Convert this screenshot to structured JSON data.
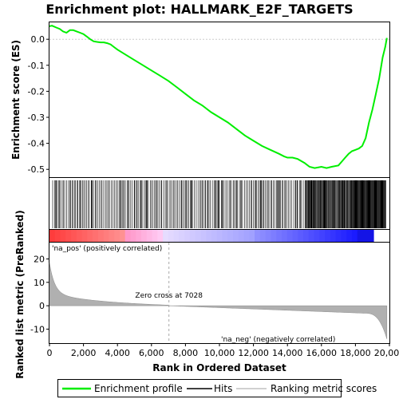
{
  "chart_data": {
    "type": "line",
    "title": "Enrichment plot: HALLMARK_E2F_TARGETS",
    "xlabel": "Rank in Ordered Dataset",
    "ylabel_top": "Enrichment score (ES)",
    "ylabel_bottom": "Ranked list metric (PreRanked)",
    "x_range": [
      0,
      20000
    ],
    "es_ylim": [
      -0.53,
      0.065
    ],
    "metric_ylim": [
      -16,
      27
    ],
    "x_ticks": [
      "0",
      "2,000",
      "4,000",
      "6,000",
      "8,000",
      "10,000",
      "12,000",
      "14,000",
      "16,000",
      "18,000",
      "20,000"
    ],
    "x_tick_values": [
      0,
      2000,
      4000,
      6000,
      8000,
      10000,
      12000,
      14000,
      16000,
      18000,
      20000
    ],
    "es_ticks": [
      "0.0",
      "-0.1",
      "-0.2",
      "-0.3",
      "-0.4",
      "-0.5"
    ],
    "es_tick_values": [
      0.0,
      -0.1,
      -0.2,
      -0.3,
      -0.4,
      -0.5
    ],
    "metric_ticks": [
      "20",
      "10",
      "0",
      "-10"
    ],
    "metric_tick_values": [
      20,
      10,
      0,
      -10
    ],
    "enrichment_profile": {
      "x": [
        0,
        150,
        400,
        600,
        800,
        1000,
        1200,
        1400,
        1600,
        1800,
        2000,
        2200,
        2400,
        2600,
        2800,
        3000,
        3200,
        3400,
        3600,
        3800,
        4000,
        4500,
        5000,
        5500,
        6000,
        6500,
        7000,
        7500,
        8000,
        8500,
        9000,
        9500,
        10000,
        10500,
        11000,
        11500,
        12000,
        12500,
        13000,
        13500,
        13800,
        14000,
        14300,
        14600,
        15000,
        15300,
        15600,
        16000,
        16300,
        16600,
        17000,
        17200,
        17400,
        17600,
        17800,
        18000,
        18200,
        18400,
        18600,
        18800,
        19000,
        19200,
        19400,
        19600,
        19750,
        19850
      ],
      "y": [
        0.05,
        0.052,
        0.045,
        0.04,
        0.03,
        0.025,
        0.035,
        0.035,
        0.03,
        0.025,
        0.02,
        0.01,
        0.0,
        -0.008,
        -0.01,
        -0.012,
        -0.012,
        -0.015,
        -0.02,
        -0.03,
        -0.04,
        -0.06,
        -0.08,
        -0.1,
        -0.12,
        -0.14,
        -0.16,
        -0.185,
        -0.21,
        -0.235,
        -0.255,
        -0.28,
        -0.3,
        -0.32,
        -0.345,
        -0.37,
        -0.39,
        -0.41,
        -0.425,
        -0.44,
        -0.45,
        -0.455,
        -0.455,
        -0.46,
        -0.475,
        -0.49,
        -0.495,
        -0.49,
        -0.495,
        -0.49,
        -0.485,
        -0.47,
        -0.455,
        -0.44,
        -0.43,
        -0.425,
        -0.42,
        -0.41,
        -0.38,
        -0.32,
        -0.27,
        -0.21,
        -0.15,
        -0.07,
        -0.03,
        0.005
      ]
    },
    "zero_cross": 7028,
    "zero_cross_label": "Zero cross at 7028",
    "pos_label": "'na_pos' (positively correlated)",
    "neg_label": "'na_neg' (negatively correlated)",
    "colors": {
      "profile": "#00ee00",
      "pos_label": "#ff0000",
      "neg_label": "#0000ff",
      "metric_fill": "#b0b0b0",
      "zero_cross_line": "#aaaaaa"
    },
    "legend": {
      "placement": "bottom",
      "items": [
        {
          "label": "Enrichment profile",
          "color": "#00ee00"
        },
        {
          "label": "Hits",
          "color": "#000000"
        },
        {
          "label": "Ranking metric scores",
          "color": "#c0c0c0"
        }
      ]
    }
  }
}
